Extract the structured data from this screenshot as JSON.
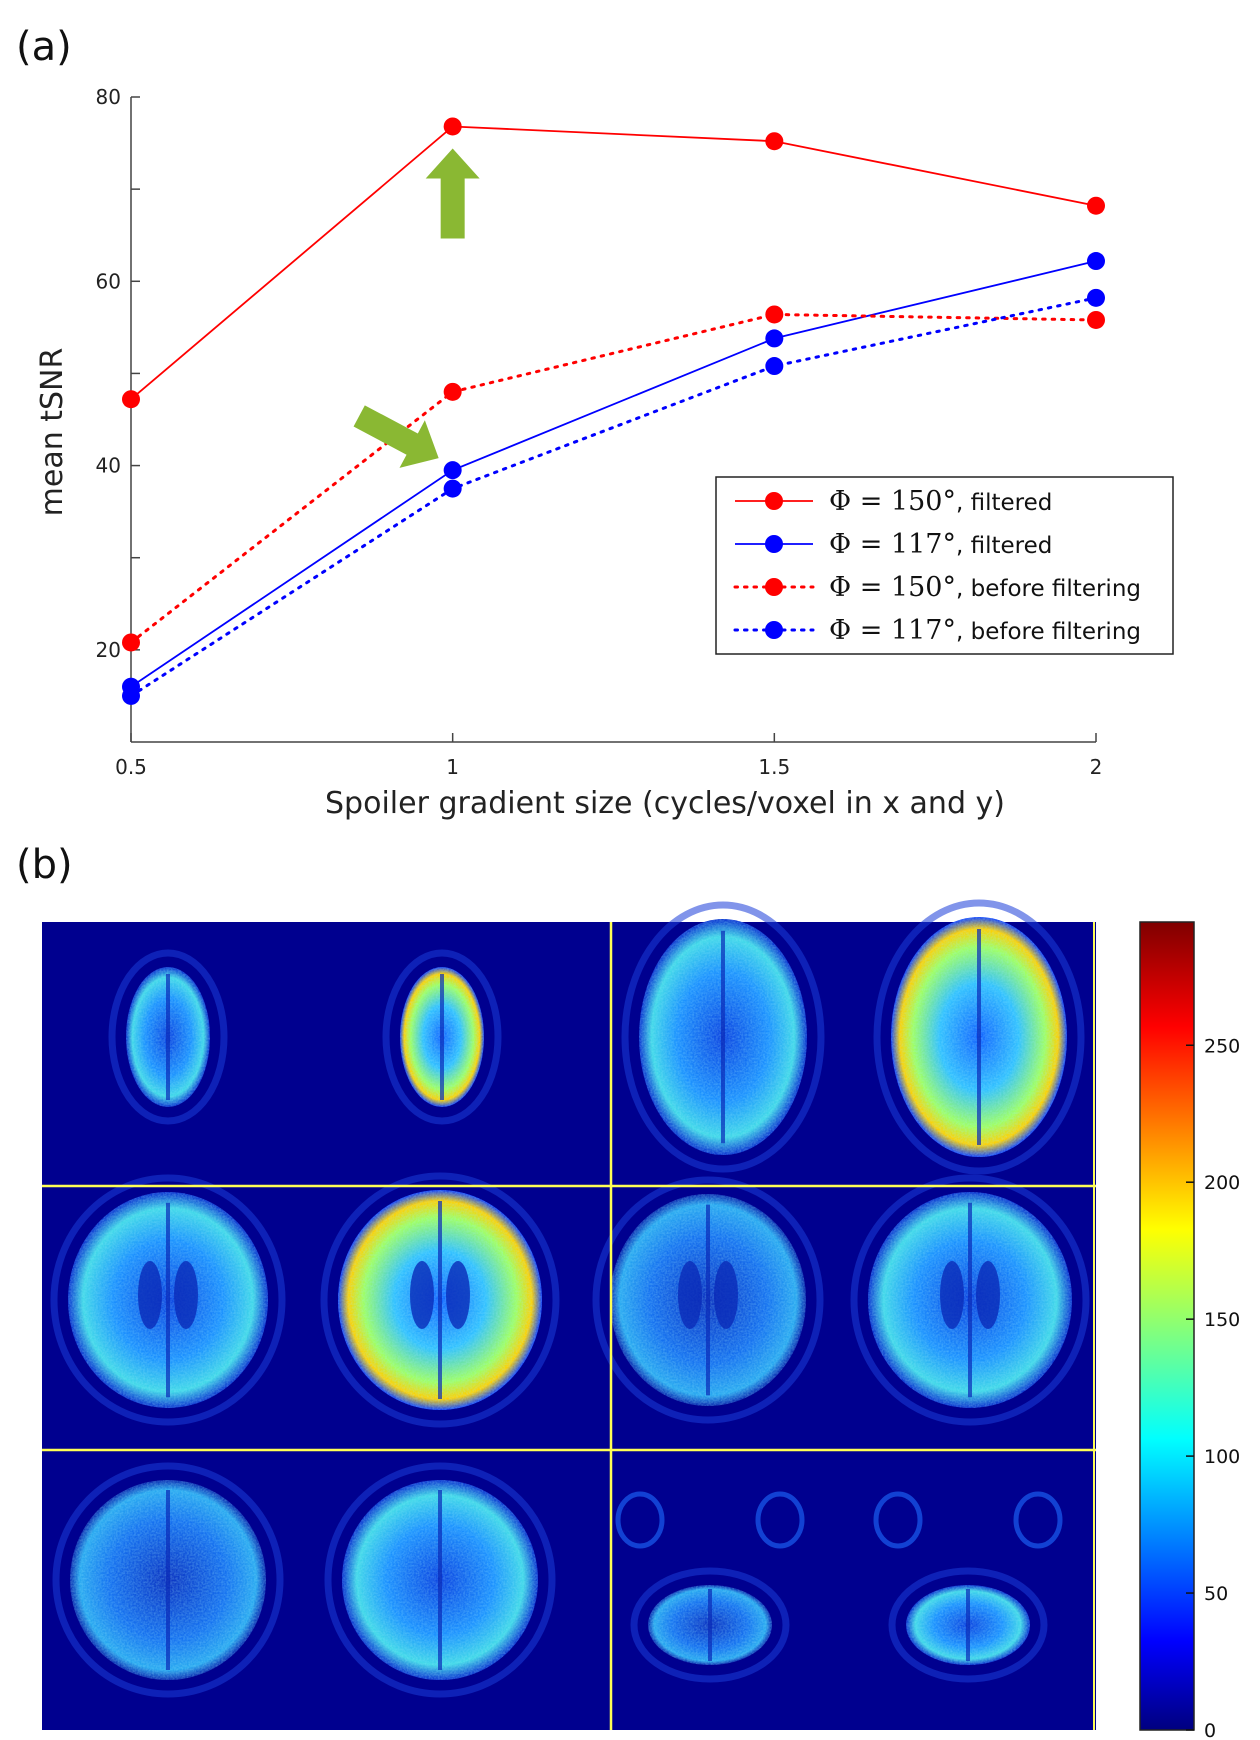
{
  "panels": {
    "a": "(a)",
    "b": "(b)"
  },
  "chart_data": {
    "type": "line",
    "xlabel": "Spoiler gradient size (cycles/voxel in x and y)",
    "ylabel": "mean tSNR",
    "x": [
      0.5,
      1,
      1.5,
      2
    ],
    "x_ticks": [
      "0.5",
      "1",
      "1.5",
      "2"
    ],
    "y_ticks": [
      "20",
      "40",
      "60",
      "80"
    ],
    "xlim": [
      0.5,
      2
    ],
    "ylim": [
      10,
      80
    ],
    "grid": false,
    "legend_position": "lower-right",
    "series": [
      {
        "math": "Φ = 150°",
        "suffix": ", filtered",
        "color": "#ff0000",
        "style": "solid",
        "values": [
          47.2,
          76.8,
          75.2,
          68.2
        ]
      },
      {
        "math": "Φ = 117°",
        "suffix": ", filtered",
        "color": "#0000ff",
        "style": "solid",
        "values": [
          16.0,
          39.5,
          53.8,
          62.2
        ]
      },
      {
        "math": "Φ = 150°",
        "suffix": ", before filtering",
        "color": "#ff0000",
        "style": "dotted",
        "values": [
          20.8,
          48.0,
          56.4,
          55.8
        ]
      },
      {
        "math": "Φ = 117°",
        "suffix": ", before filtering",
        "color": "#0000ff",
        "style": "dotted",
        "values": [
          15.0,
          37.5,
          50.8,
          58.2
        ]
      }
    ],
    "annotations": [
      {
        "type": "arrow",
        "color": "#8ab833",
        "points_to": {
          "x": 1,
          "y": 76.8
        },
        "direction": "up"
      },
      {
        "type": "arrow",
        "color": "#8ab833",
        "points_to": {
          "x": 1,
          "y": 39.5
        },
        "direction": "down-right"
      }
    ]
  },
  "colorbar": {
    "ticks": [
      "0",
      "50",
      "100",
      "150",
      "200",
      "250"
    ],
    "tick_values": [
      0,
      50,
      100,
      150,
      200,
      250
    ],
    "max": 295
  },
  "image_grid": {
    "rows": 3,
    "cols": 2,
    "background": "#00008f",
    "divider_color": "#ffff55"
  }
}
